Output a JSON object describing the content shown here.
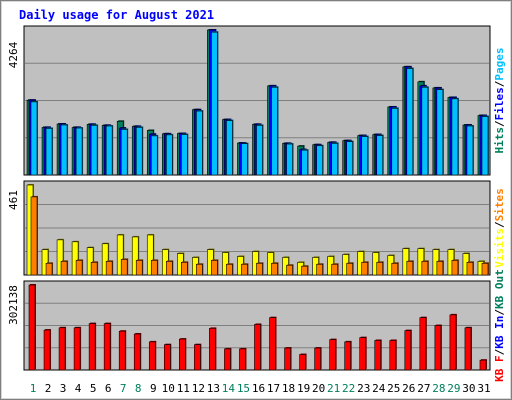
{
  "chart_data": [
    {
      "type": "bar",
      "title": "Daily usage for August 2021",
      "panel": "top",
      "max_label": "4264",
      "ymax": 4264,
      "categories": [
        "1",
        "2",
        "3",
        "4",
        "5",
        "6",
        "7",
        "8",
        "9",
        "10",
        "11",
        "12",
        "13",
        "14",
        "15",
        "16",
        "17",
        "18",
        "19",
        "20",
        "21",
        "22",
        "23",
        "24",
        "25",
        "26",
        "27",
        "28",
        "29",
        "30",
        "31"
      ],
      "weekend_days": [
        "1",
        "7",
        "8",
        "14",
        "15",
        "21",
        "22",
        "28",
        "29"
      ],
      "legend": [
        {
          "text": "Hits",
          "color": "#00805c"
        },
        {
          "text": "/",
          "color": "#000000"
        },
        {
          "text": "Files",
          "color": "#0000ff"
        },
        {
          "text": "/",
          "color": "#000000"
        },
        {
          "text": "Pages",
          "color": "#00c0ff"
        }
      ],
      "series": [
        {
          "name": "Hits",
          "color": "#00805c",
          "values": [
            2200,
            1400,
            1500,
            1400,
            1490,
            1460,
            1580,
            1430,
            1310,
            1210,
            1220,
            1920,
            4264,
            1630,
            940,
            1490,
            2620,
            930,
            850,
            890,
            960,
            1010,
            1160,
            1190,
            2000,
            3180,
            2740,
            2560,
            2280,
            1470,
            1750
          ]
        },
        {
          "name": "Files",
          "color": "#0000ff",
          "values": [
            2200,
            1400,
            1500,
            1400,
            1490,
            1460,
            1380,
            1430,
            1200,
            1210,
            1220,
            1920,
            4264,
            1630,
            940,
            1490,
            2620,
            930,
            750,
            890,
            960,
            1010,
            1160,
            1190,
            2000,
            3180,
            2620,
            2560,
            2280,
            1470,
            1750
          ]
        },
        {
          "name": "Pages",
          "color": "#00c0ff",
          "values": [
            2150,
            1370,
            1470,
            1380,
            1460,
            1440,
            1340,
            1400,
            1150,
            1180,
            1190,
            1880,
            4200,
            1600,
            920,
            1460,
            2580,
            910,
            730,
            860,
            930,
            980,
            1130,
            1160,
            1960,
            3130,
            2580,
            2510,
            2240,
            1440,
            1720
          ]
        }
      ]
    },
    {
      "type": "bar",
      "panel": "middle",
      "max_label": "461",
      "ymax": 461,
      "legend": [
        {
          "text": "Visits",
          "color": "#ffff00"
        },
        {
          "text": "/",
          "color": "#000000"
        },
        {
          "text": "Sites",
          "color": "#ff8000"
        }
      ],
      "series": [
        {
          "name": "Visits",
          "color": "#ffff00",
          "values": [
            461,
            130,
            180,
            170,
            140,
            160,
            205,
            195,
            205,
            130,
            110,
            90,
            130,
            115,
            95,
            120,
            115,
            90,
            65,
            90,
            95,
            105,
            120,
            115,
            100,
            135,
            135,
            130,
            130,
            110,
            70
          ]
        },
        {
          "name": "Sites",
          "color": "#ff8000",
          "values": [
            400,
            60,
            70,
            75,
            65,
            70,
            80,
            75,
            75,
            70,
            65,
            55,
            75,
            55,
            55,
            60,
            60,
            50,
            45,
            55,
            55,
            60,
            65,
            65,
            60,
            70,
            70,
            70,
            75,
            65,
            60
          ]
        }
      ]
    },
    {
      "type": "bar",
      "panel": "bottom",
      "max_label": "302138",
      "ymax": 302138,
      "legend": [
        {
          "text": "KB F",
          "color": "#ff0000"
        },
        {
          "text": "/",
          "color": "#000000"
        },
        {
          "text": "KB In",
          "color": "#0000ff"
        },
        {
          "text": "/",
          "color": "#000000"
        },
        {
          "text": "KB Out",
          "color": "#00805c"
        }
      ],
      "series": [
        {
          "name": "KB F",
          "color": "#ff0000",
          "values": [
            302138,
            142000,
            150000,
            150000,
            165000,
            165000,
            138000,
            128000,
            100000,
            90000,
            110000,
            90000,
            148000,
            75000,
            75000,
            162000,
            186000,
            78000,
            55000,
            78000,
            108000,
            100000,
            115000,
            105000,
            105000,
            140000,
            186000,
            158000,
            196000,
            150000,
            35000
          ]
        }
      ]
    }
  ]
}
